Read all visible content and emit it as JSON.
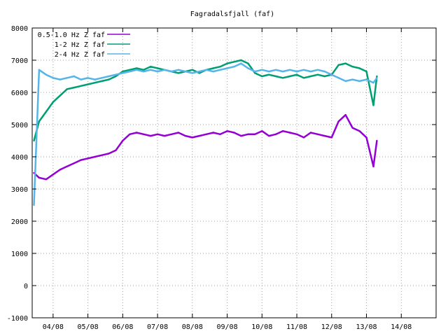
{
  "chart_data": {
    "type": "line",
    "title": "Fagradalsfjall (faf)",
    "xlabel": "",
    "ylabel": "",
    "xlim": [
      0,
      11.6
    ],
    "ylim": [
      -1000,
      8000
    ],
    "x_tick_labels": [
      "04/08",
      "05/08",
      "06/08",
      "07/08",
      "08/08",
      "09/08",
      "10/08",
      "11/08",
      "12/08",
      "13/08",
      "14/08"
    ],
    "x_tick_positions": [
      0.6,
      1.6,
      2.6,
      3.6,
      4.6,
      5.6,
      6.6,
      7.6,
      8.6,
      9.6,
      10.6
    ],
    "y_ticks": [
      -1000,
      0,
      1000,
      2000,
      3000,
      4000,
      5000,
      6000,
      7000,
      8000
    ],
    "grid": true,
    "legend_position": "top-left",
    "series": [
      {
        "name": "0.5-1.0 Hz Z faf",
        "color": "#9400d3",
        "x": [
          0.05,
          0.2,
          0.4,
          0.6,
          0.8,
          1.0,
          1.2,
          1.4,
          1.6,
          1.8,
          2.0,
          2.2,
          2.4,
          2.6,
          2.8,
          3.0,
          3.2,
          3.4,
          3.6,
          3.8,
          4.0,
          4.2,
          4.4,
          4.6,
          4.8,
          5.0,
          5.2,
          5.4,
          5.6,
          5.8,
          6.0,
          6.2,
          6.4,
          6.6,
          6.8,
          7.0,
          7.2,
          7.4,
          7.6,
          7.8,
          8.0,
          8.2,
          8.4,
          8.6,
          8.8,
          9.0,
          9.2,
          9.4,
          9.6,
          9.8,
          9.9
        ],
        "y": [
          3500,
          3350,
          3300,
          3450,
          3600,
          3700,
          3800,
          3900,
          3950,
          4000,
          4050,
          4100,
          4200,
          4500,
          4700,
          4750,
          4700,
          4650,
          4700,
          4650,
          4700,
          4750,
          4650,
          4600,
          4650,
          4700,
          4750,
          4700,
          4800,
          4750,
          4650,
          4700,
          4700,
          4800,
          4650,
          4700,
          4800,
          4750,
          4700,
          4600,
          4750,
          4700,
          4650,
          4600,
          5100,
          5300,
          4900,
          4800,
          4600,
          3700,
          4500
        ]
      },
      {
        "name": "1-2 Hz Z faf",
        "color": "#009e73",
        "x": [
          0.05,
          0.2,
          0.4,
          0.6,
          0.8,
          1.0,
          1.2,
          1.4,
          1.6,
          1.8,
          2.0,
          2.2,
          2.4,
          2.6,
          2.8,
          3.0,
          3.2,
          3.4,
          3.6,
          3.8,
          4.0,
          4.2,
          4.4,
          4.6,
          4.8,
          5.0,
          5.2,
          5.4,
          5.6,
          5.8,
          6.0,
          6.2,
          6.4,
          6.6,
          6.8,
          7.0,
          7.2,
          7.4,
          7.6,
          7.8,
          8.0,
          8.2,
          8.4,
          8.6,
          8.8,
          9.0,
          9.2,
          9.4,
          9.6,
          9.8,
          9.9
        ],
        "y": [
          4500,
          5100,
          5400,
          5700,
          5900,
          6100,
          6150,
          6200,
          6250,
          6300,
          6350,
          6400,
          6500,
          6650,
          6700,
          6750,
          6700,
          6800,
          6750,
          6700,
          6650,
          6600,
          6650,
          6700,
          6600,
          6700,
          6750,
          6800,
          6900,
          6950,
          7000,
          6900,
          6600,
          6500,
          6550,
          6500,
          6450,
          6500,
          6550,
          6450,
          6500,
          6550,
          6500,
          6550,
          6850,
          6900,
          6800,
          6750,
          6650,
          5600,
          6500
        ]
      },
      {
        "name": "2-4 Hz Z faf",
        "color": "#56b4e9",
        "x": [
          0.05,
          0.2,
          0.4,
          0.6,
          0.8,
          1.0,
          1.2,
          1.4,
          1.6,
          1.8,
          2.0,
          2.2,
          2.4,
          2.6,
          2.8,
          3.0,
          3.2,
          3.4,
          3.6,
          3.8,
          4.0,
          4.2,
          4.4,
          4.6,
          4.8,
          5.0,
          5.2,
          5.4,
          5.6,
          5.8,
          6.0,
          6.2,
          6.4,
          6.6,
          6.8,
          7.0,
          7.2,
          7.4,
          7.6,
          7.8,
          8.0,
          8.2,
          8.4,
          8.6,
          8.8,
          9.0,
          9.2,
          9.4,
          9.6,
          9.8,
          9.9
        ],
        "y": [
          2500,
          6700,
          6550,
          6450,
          6400,
          6450,
          6500,
          6400,
          6450,
          6400,
          6450,
          6500,
          6550,
          6600,
          6650,
          6700,
          6650,
          6700,
          6650,
          6700,
          6650,
          6700,
          6650,
          6600,
          6650,
          6700,
          6650,
          6700,
          6750,
          6800,
          6900,
          6750,
          6650,
          6700,
          6650,
          6700,
          6650,
          6700,
          6650,
          6700,
          6650,
          6700,
          6650,
          6550,
          6450,
          6350,
          6400,
          6350,
          6400,
          6300,
          6450
        ]
      }
    ]
  }
}
